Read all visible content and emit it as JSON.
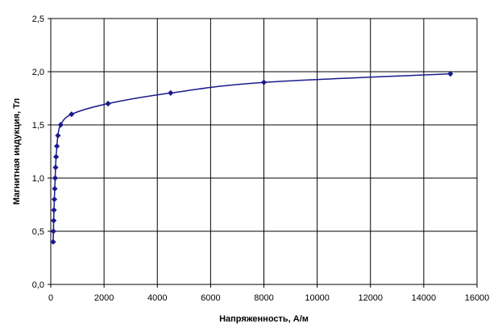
{
  "chart_data": {
    "type": "line",
    "title": "",
    "xlabel": "Напряженность, А/м",
    "ylabel": "Магнитная индукция, Тл",
    "xlim": [
      0,
      16000
    ],
    "ylim": [
      0,
      2.5
    ],
    "x_ticks": [
      0,
      2000,
      4000,
      6000,
      8000,
      10000,
      12000,
      14000,
      16000
    ],
    "y_ticks": [
      0,
      0.5,
      1.0,
      1.5,
      2.0,
      2.5
    ],
    "x_tick_labels": [
      "0",
      "2000",
      "4000",
      "6000",
      "8000",
      "10000",
      "12000",
      "14000",
      "16000"
    ],
    "y_tick_labels": [
      "0,0",
      "0,5",
      "1,0",
      "1,5",
      "2,0",
      "2,5"
    ],
    "grid": true,
    "legend": "none",
    "series_color": "#1a1a8c",
    "series": [
      {
        "x": [
          90,
          100,
          110,
          120,
          135,
          150,
          165,
          180,
          200,
          230,
          270,
          370,
          780,
          2150,
          4500,
          8000,
          15000
        ],
        "y": [
          0.4,
          0.5,
          0.6,
          0.7,
          0.8,
          0.9,
          1.0,
          1.1,
          1.2,
          1.3,
          1.4,
          1.5,
          1.6,
          1.7,
          1.8,
          1.9,
          1.98
        ]
      }
    ]
  }
}
